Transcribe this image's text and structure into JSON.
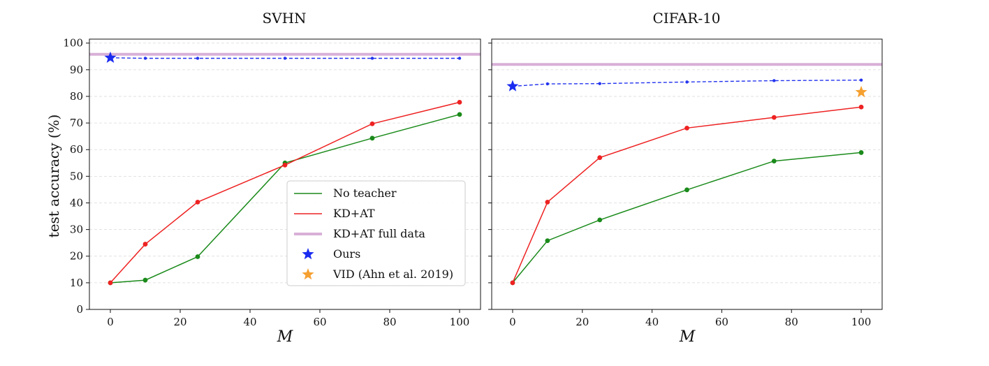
{
  "chart_data": [
    {
      "type": "line",
      "title": "SVHN",
      "xlabel": "M",
      "ylabel": "test accuracy (%)",
      "xlim": [
        -6,
        106
      ],
      "ylim": [
        0,
        101.5
      ],
      "xticks": [
        "0",
        "20",
        "40",
        "60",
        "80",
        "100"
      ],
      "yticks": [
        "0",
        "10",
        "20",
        "30",
        "40",
        "50",
        "60",
        "70",
        "80",
        "90",
        "100"
      ],
      "grid": "horizontal dashed",
      "legend": "lower-right",
      "hline": {
        "name": "KD+AT full data",
        "y": 95.8,
        "color": "#d8b0d8"
      },
      "series": [
        {
          "name": "No teacher",
          "color": "#1a8a1a",
          "style": "solid",
          "x": [
            0,
            10,
            25,
            50,
            75,
            100
          ],
          "y": [
            10.0,
            11.0,
            19.8,
            55.0,
            64.3,
            73.2
          ]
        },
        {
          "name": "KD+AT",
          "color": "#ee2222",
          "style": "solid",
          "x": [
            0,
            10,
            25,
            50,
            75,
            100
          ],
          "y": [
            10.0,
            24.5,
            40.3,
            54.2,
            69.7,
            77.8
          ]
        },
        {
          "name": "",
          "color": "#2233ee",
          "style": "dashed",
          "x": [
            0,
            10,
            25,
            50,
            75,
            100
          ],
          "y": [
            94.5,
            94.3,
            94.3,
            94.3,
            94.3,
            94.3
          ]
        }
      ],
      "markers": [
        {
          "name": "Ours",
          "symbol": "star",
          "color": "#1a2bf0",
          "x": 0,
          "y": 94.5
        }
      ]
    },
    {
      "type": "line",
      "title": "CIFAR-10",
      "xlabel": "M",
      "ylabel": "",
      "xlim": [
        -6,
        106
      ],
      "ylim": [
        0,
        101.5
      ],
      "xticks": [
        "0",
        "20",
        "40",
        "60",
        "80",
        "100"
      ],
      "yticks": [],
      "grid": "horizontal dashed",
      "legend": "",
      "hline": {
        "name": "KD+AT full data",
        "y": 92.0,
        "color": "#d8b0d8"
      },
      "series": [
        {
          "name": "No teacher",
          "color": "#1a8a1a",
          "style": "solid",
          "x": [
            0,
            10,
            25,
            50,
            75,
            100
          ],
          "y": [
            10.0,
            25.8,
            33.6,
            44.9,
            55.7,
            58.9
          ]
        },
        {
          "name": "KD+AT",
          "color": "#ee2222",
          "style": "solid",
          "x": [
            0,
            10,
            25,
            50,
            75,
            100
          ],
          "y": [
            10.0,
            40.3,
            57.0,
            68.1,
            72.1,
            76.0
          ]
        },
        {
          "name": "",
          "color": "#2233ee",
          "style": "dashed",
          "x": [
            0,
            10,
            25,
            50,
            75,
            100
          ],
          "y": [
            83.8,
            84.7,
            84.8,
            85.4,
            85.9,
            86.1
          ]
        }
      ],
      "markers": [
        {
          "name": "Ours",
          "symbol": "star",
          "color": "#1a2bf0",
          "x": 0,
          "y": 83.8
        },
        {
          "name": "VID (Ahn et al. 2019)",
          "symbol": "star",
          "color": "#f5a030",
          "x": 100,
          "y": 81.6
        }
      ]
    }
  ],
  "legend": {
    "items": [
      {
        "label": "No teacher",
        "kind": "line",
        "color": "#1a8a1a"
      },
      {
        "label": "KD+AT",
        "kind": "line",
        "color": "#ee2222"
      },
      {
        "label": "KD+AT full data",
        "kind": "thickline",
        "color": "#d8b0d8"
      },
      {
        "label": "Ours",
        "kind": "star",
        "color": "#1a2bf0"
      },
      {
        "label": "VID (Ahn et al. 2019)",
        "kind": "star",
        "color": "#f5a030"
      }
    ]
  }
}
